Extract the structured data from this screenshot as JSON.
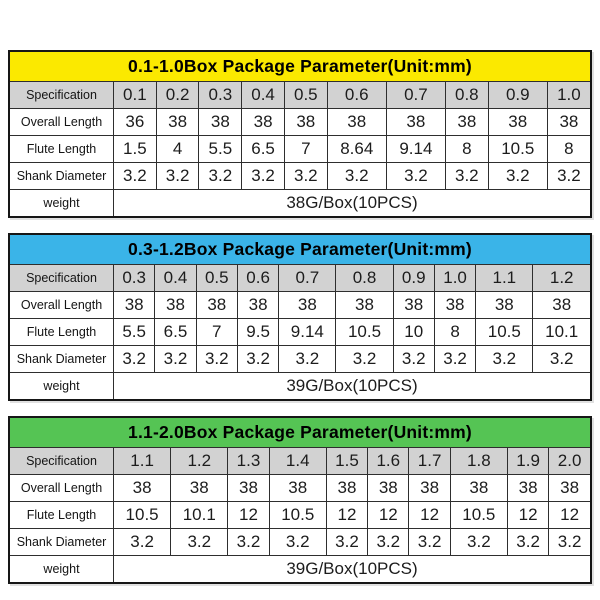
{
  "page": {
    "background_color": "#ffffff",
    "grey_row_color": "#d2d2d2"
  },
  "row_labels": {
    "specification": "Specification",
    "overall_length": "Overall Length",
    "flute_length": "Flute Length",
    "shank_diameter": "Shank Diameter",
    "weight": "weight"
  },
  "tables": [
    {
      "header": "0.1-1.0Box Package Parameter(Unit:mm)",
      "header_color": "#fbe900",
      "specification": [
        "0.1",
        "0.2",
        "0.3",
        "0.4",
        "0.5",
        "0.6",
        "0.7",
        "0.8",
        "0.9",
        "1.0"
      ],
      "overall_length": [
        "36",
        "38",
        "38",
        "38",
        "38",
        "38",
        "38",
        "38",
        "38",
        "38"
      ],
      "flute_length": [
        "1.5",
        "4",
        "5.5",
        "6.5",
        "7",
        "8.64",
        "9.14",
        "8",
        "10.5",
        "8"
      ],
      "shank_diameter": [
        "3.2",
        "3.2",
        "3.2",
        "3.2",
        "3.2",
        "3.2",
        "3.2",
        "3.2",
        "3.2",
        "3.2"
      ],
      "weight": "38G/Box(10PCS)"
    },
    {
      "header": "0.3-1.2Box Package Parameter(Unit:mm)",
      "header_color": "#3ab4e8",
      "specification": [
        "0.3",
        "0.4",
        "0.5",
        "0.6",
        "0.7",
        "0.8",
        "0.9",
        "1.0",
        "1.1",
        "1.2"
      ],
      "overall_length": [
        "38",
        "38",
        "38",
        "38",
        "38",
        "38",
        "38",
        "38",
        "38",
        "38"
      ],
      "flute_length": [
        "5.5",
        "6.5",
        "7",
        "9.5",
        "9.14",
        "10.5",
        "10",
        "8",
        "10.5",
        "10.1"
      ],
      "shank_diameter": [
        "3.2",
        "3.2",
        "3.2",
        "3.2",
        "3.2",
        "3.2",
        "3.2",
        "3.2",
        "3.2",
        "3.2"
      ],
      "weight": "39G/Box(10PCS)"
    },
    {
      "header": "1.1-2.0Box Package Parameter(Unit:mm)",
      "header_color": "#55c454",
      "specification": [
        "1.1",
        "1.2",
        "1.3",
        "1.4",
        "1.5",
        "1.6",
        "1.7",
        "1.8",
        "1.9",
        "2.0"
      ],
      "overall_length": [
        "38",
        "38",
        "38",
        "38",
        "38",
        "38",
        "38",
        "38",
        "38",
        "38"
      ],
      "flute_length": [
        "10.5",
        "10.1",
        "12",
        "10.5",
        "12",
        "12",
        "12",
        "10.5",
        "12",
        "12"
      ],
      "shank_diameter": [
        "3.2",
        "3.2",
        "3.2",
        "3.2",
        "3.2",
        "3.2",
        "3.2",
        "3.2",
        "3.2",
        "3.2"
      ],
      "weight": "39G/Box(10PCS)"
    }
  ]
}
